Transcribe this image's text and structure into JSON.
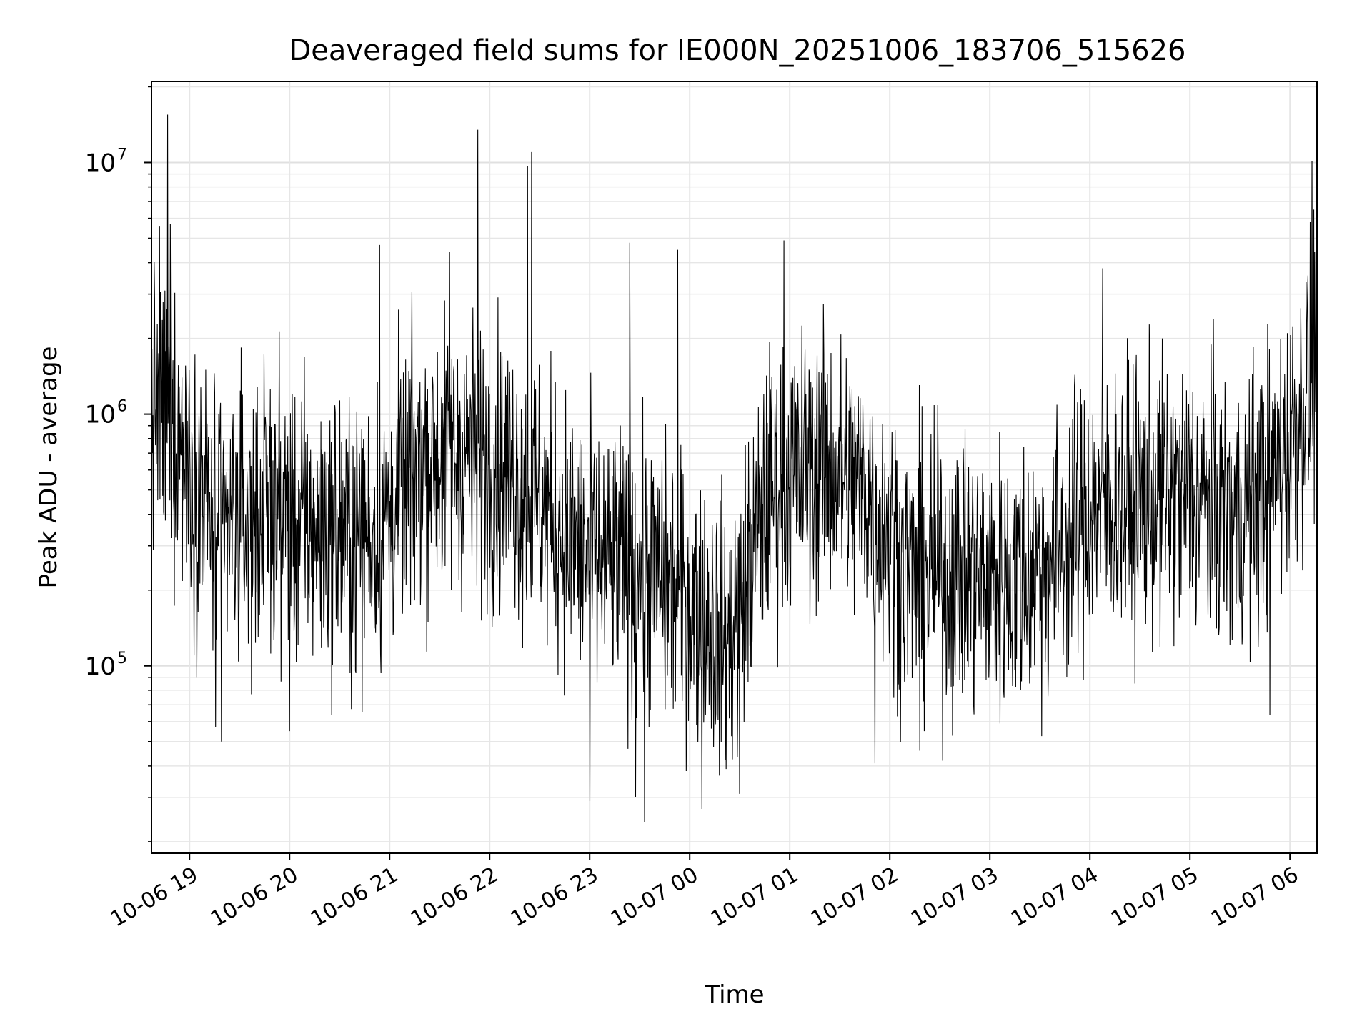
{
  "chart_data": {
    "type": "line",
    "title": "Deaveraged field sums for IE000N_20251006_183706_515626",
    "xlabel": "Time",
    "ylabel": "Peak ADU - average",
    "yscale": "log",
    "ylim": [
      18000,
      21000000
    ],
    "xlim_hours": [
      -0.38,
      11.27
    ],
    "grid": true,
    "line_color": "#000000",
    "x_ticks": [
      {
        "label": "10-06 19",
        "hour": 0
      },
      {
        "label": "10-06 20",
        "hour": 1
      },
      {
        "label": "10-06 21",
        "hour": 2
      },
      {
        "label": "10-06 22",
        "hour": 3
      },
      {
        "label": "10-06 23",
        "hour": 4
      },
      {
        "label": "10-07 00",
        "hour": 5
      },
      {
        "label": "10-07 01",
        "hour": 6
      },
      {
        "label": "10-07 02",
        "hour": 7
      },
      {
        "label": "10-07 03",
        "hour": 8
      },
      {
        "label": "10-07 04",
        "hour": 9
      },
      {
        "label": "10-07 05",
        "hour": 10
      },
      {
        "label": "10-07 06",
        "hour": 11
      }
    ],
    "y_ticks": [
      {
        "base": "10",
        "exp": "5",
        "value": 100000
      },
      {
        "base": "10",
        "exp": "6",
        "value": 1000000
      },
      {
        "base": "10",
        "exp": "7",
        "value": 10000000
      }
    ],
    "series": [
      {
        "name": "Peak ADU - average",
        "baseline": {
          "hours": [
            -0.38,
            -0.1,
            0.3,
            0.8,
            1.4,
            1.9,
            2.3,
            2.8,
            3.2,
            3.6,
            4.0,
            4.5,
            5.0,
            5.4,
            5.8,
            6.3,
            6.8,
            7.2,
            7.7,
            8.2,
            8.6,
            9.0,
            9.5,
            10.0,
            10.5,
            10.9,
            11.27
          ],
          "values": [
            1100000,
            800000,
            330000,
            420000,
            330000,
            340000,
            650000,
            700000,
            600000,
            400000,
            260000,
            240000,
            180000,
            120000,
            500000,
            650000,
            480000,
            230000,
            230000,
            220000,
            260000,
            420000,
            450000,
            480000,
            380000,
            650000,
            1500000
          ]
        },
        "samples": 2600,
        "peaks": [
          {
            "hour": -0.22,
            "value": 15500000
          },
          {
            "hour": -0.3,
            "value": 5600000
          },
          {
            "hour": -0.19,
            "value": 5700000
          },
          {
            "hour": 2.88,
            "value": 13500000
          },
          {
            "hour": 3.38,
            "value": 9700000
          },
          {
            "hour": 3.42,
            "value": 11000000
          },
          {
            "hour": 5.94,
            "value": 4900000
          },
          {
            "hour": 11.22,
            "value": 10100000
          },
          {
            "hour": 11.24,
            "value": 6500000
          },
          {
            "hour": 1.9,
            "value": 4700000
          },
          {
            "hour": 2.6,
            "value": 4400000
          },
          {
            "hour": 4.4,
            "value": 4800000
          },
          {
            "hour": 4.88,
            "value": 4500000
          },
          {
            "hour": 9.13,
            "value": 3800000
          }
        ],
        "troughs": [
          {
            "hour": 4.55,
            "value": 24000
          },
          {
            "hour": 5.12,
            "value": 27000
          },
          {
            "hour": 4.0,
            "value": 29000
          },
          {
            "hour": 4.46,
            "value": 30000
          },
          {
            "hour": 5.5,
            "value": 31000
          },
          {
            "hour": 0.32,
            "value": 50000
          },
          {
            "hour": 0.26,
            "value": 57000
          },
          {
            "hour": 1.0,
            "value": 55000
          },
          {
            "hour": 6.85,
            "value": 41000
          },
          {
            "hour": 10.8,
            "value": 64000
          },
          {
            "hour": 7.3,
            "value": 46000
          }
        ]
      }
    ]
  }
}
